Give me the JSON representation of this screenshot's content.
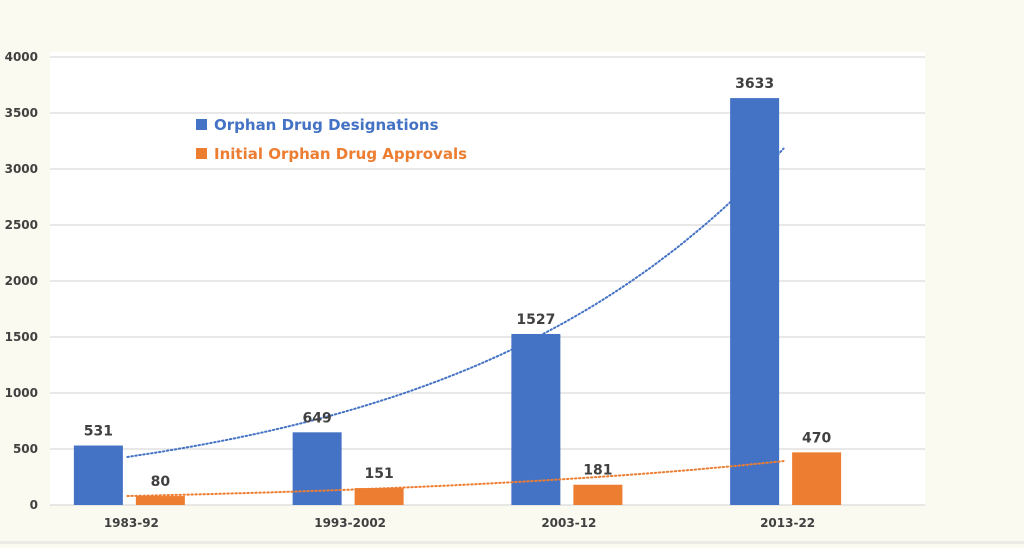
{
  "chart_data": {
    "type": "bar",
    "title": "",
    "xlabel": "",
    "ylabel": "",
    "categories": [
      "1983-92",
      "1993-2002",
      "2003-12",
      "2013-22"
    ],
    "series": [
      {
        "name": "Orphan Drug Designations",
        "color": "#4472c4",
        "values": [
          531,
          649,
          1527,
          3633
        ],
        "trendline": {
          "type": "exponential",
          "color": "#4472c4",
          "start_value": 429,
          "growth_per_category": 0.668
        }
      },
      {
        "name": "Initial Orphan Drug Approvals",
        "color": "#ed7d31",
        "values": [
          80,
          151,
          181,
          470
        ],
        "trendline": {
          "type": "exponential",
          "color": "#ed7d31",
          "start_value": 80,
          "growth_per_category": 0.53
        }
      }
    ],
    "ylim": [
      0,
      4000
    ],
    "yticks": [
      0,
      500,
      1000,
      1500,
      2000,
      2500,
      3000,
      3500,
      4000
    ],
    "grid": true,
    "legend": "top-left",
    "data_labels": true
  }
}
